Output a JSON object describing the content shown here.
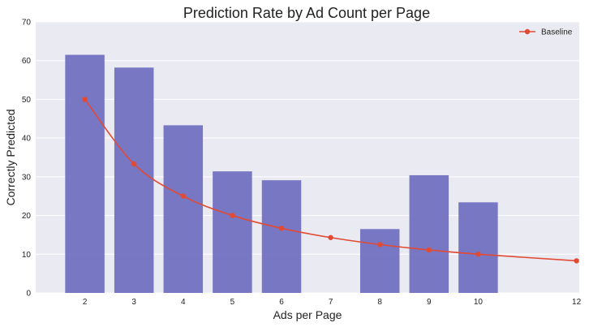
{
  "chart_data": {
    "type": "bar",
    "title": "Prediction Rate by Ad Count per Page",
    "xlabel": "Ads per Page",
    "ylabel": "Correctly Predicted",
    "x_ticks": [
      2,
      3,
      4,
      5,
      6,
      7,
      8,
      9,
      10,
      12
    ],
    "y_ticks": [
      0,
      10,
      20,
      30,
      40,
      50,
      60,
      70
    ],
    "xlim": [
      1,
      12
    ],
    "ylim": [
      0,
      70
    ],
    "bars": {
      "x": [
        2,
        3,
        4,
        5,
        6,
        8,
        9,
        10
      ],
      "values": [
        61.5,
        58.2,
        43.3,
        31.4,
        29.1,
        16.5,
        30.4,
        23.4
      ],
      "color": "#6c6cc0"
    },
    "series": [
      {
        "name": "Baseline",
        "type": "line",
        "color": "#e24a33",
        "marker_x": [
          2,
          3,
          4,
          5,
          6,
          7,
          8,
          9,
          10,
          12
        ],
        "marker_y": [
          50,
          33.3,
          25,
          20,
          16.7,
          14.3,
          12.5,
          11.1,
          10,
          8.3
        ]
      }
    ],
    "grid": true,
    "legend": "top-right",
    "background": "#eaeaf2"
  }
}
